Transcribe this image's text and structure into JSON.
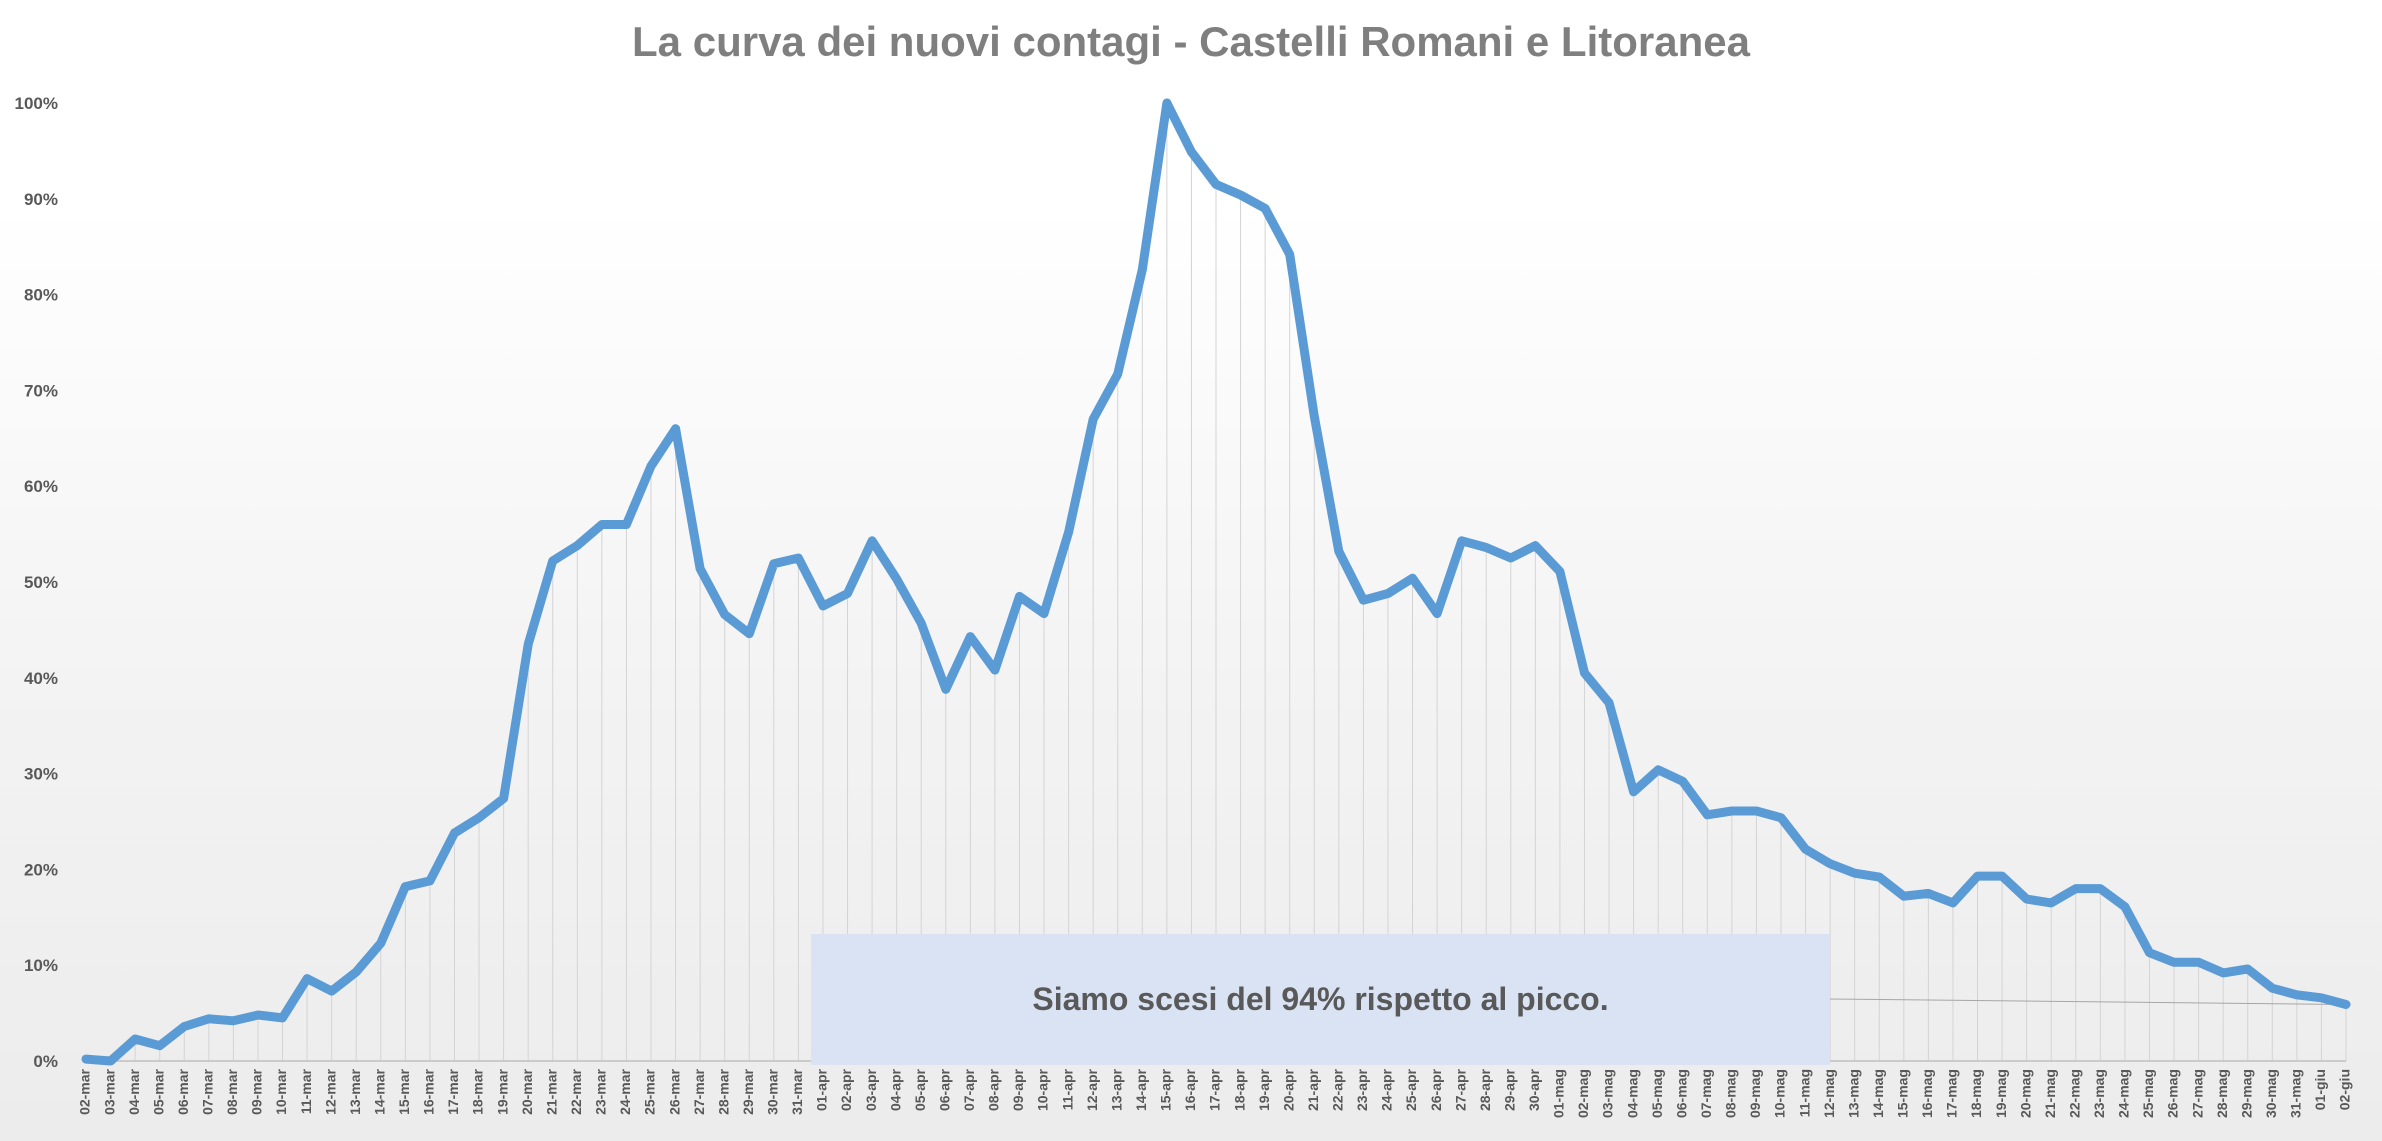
{
  "chart_data": {
    "type": "line",
    "title": "La curva dei nuovi contagi - Castelli Romani e Litoranea",
    "xlabel": "",
    "ylabel": "",
    "ylim": [
      0,
      100
    ],
    "y_ticks": [
      "0%",
      "10%",
      "20%",
      "30%",
      "40%",
      "50%",
      "60%",
      "70%",
      "80%",
      "90%",
      "100%"
    ],
    "grid": "vertical",
    "legend": "none",
    "line_color": "#5b9bd5",
    "annotation": "Siamo scesi del 94% rispetto al picco.",
    "categories": [
      "02-mar",
      "03-mar",
      "04-mar",
      "05-mar",
      "06-mar",
      "07-mar",
      "08-mar",
      "09-mar",
      "10-mar",
      "11-mar",
      "12-mar",
      "13-mar",
      "14-mar",
      "15-mar",
      "16-mar",
      "17-mar",
      "18-mar",
      "19-mar",
      "20-mar",
      "21-mar",
      "22-mar",
      "23-mar",
      "24-mar",
      "25-mar",
      "26-mar",
      "27-mar",
      "28-mar",
      "29-mar",
      "30-mar",
      "31-mar",
      "01-apr",
      "02-apr",
      "03-apr",
      "04-apr",
      "05-apr",
      "06-apr",
      "07-apr",
      "08-apr",
      "09-apr",
      "10-apr",
      "11-apr",
      "12-apr",
      "13-apr",
      "14-apr",
      "15-apr",
      "16-apr",
      "17-apr",
      "18-apr",
      "19-apr",
      "20-apr",
      "21-apr",
      "22-apr",
      "23-apr",
      "24-apr",
      "25-apr",
      "26-apr",
      "27-apr",
      "28-apr",
      "29-apr",
      "30-apr",
      "01-mag",
      "02-mag",
      "03-mag",
      "04-mag",
      "05-mag",
      "06-mag",
      "07-mag",
      "08-mag",
      "09-mag",
      "10-mag",
      "11-mag",
      "12-mag",
      "13-mag",
      "14-mag",
      "15-mag",
      "16-mag",
      "17-mag",
      "18-mag",
      "19-mag",
      "20-mag",
      "21-mag",
      "22-mag",
      "23-mag",
      "24-mag",
      "25-mag",
      "26-mag",
      "27-mag",
      "28-mag",
      "29-mag",
      "30-mag",
      "31-mag",
      "01-giu",
      "02-giu"
    ],
    "values": [
      0.2,
      0,
      2.3,
      1.6,
      3.6,
      4.4,
      4.2,
      4.8,
      4.5,
      8.6,
      7.3,
      9.3,
      12.3,
      18.2,
      18.8,
      23.8,
      25.4,
      27.4,
      43.5,
      52.2,
      53.8,
      56,
      56,
      62.1,
      66,
      51.4,
      46.6,
      44.6,
      51.9,
      52.5,
      47.5,
      48.8,
      54.3,
      50.3,
      45.7,
      38.8,
      44.3,
      40.8,
      48.5,
      46.7,
      55.2,
      67,
      71.7,
      82.6,
      100,
      94.9,
      91.5,
      90.4,
      89,
      84.2,
      67.3,
      53.2,
      48.1,
      48.8,
      50.4,
      46.7,
      54.3,
      53.6,
      52.5,
      53.8,
      51.1,
      40.5,
      37.4,
      28.1,
      30.4,
      29.2,
      25.7,
      26.1,
      26.1,
      25.4,
      22.1,
      20.6,
      19.6,
      19.2,
      17.2,
      17.5,
      16.5,
      19.3,
      19.3,
      16.9,
      16.5,
      18,
      18,
      16.1,
      11.3,
      10.3,
      10.3,
      9.2,
      9.6,
      7.6,
      6.9,
      6.6,
      5.9
    ]
  }
}
